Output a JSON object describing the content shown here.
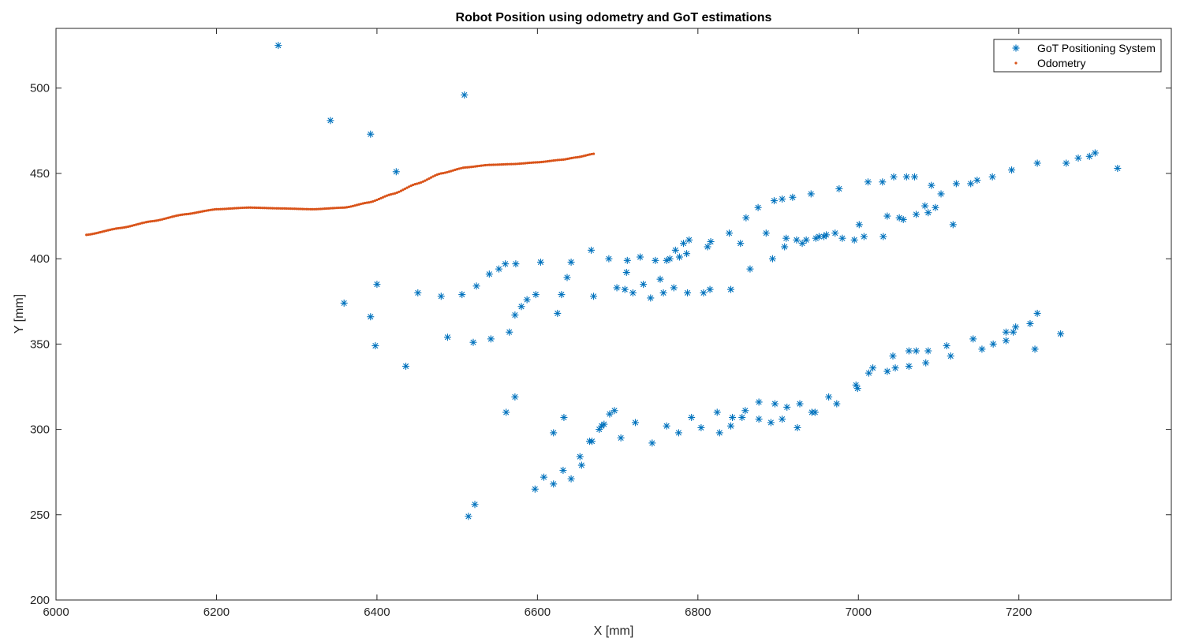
{
  "colors": {
    "got": "#0072BD",
    "odometry": "#D95319",
    "axis": "#262626",
    "legend_border": "#262626"
  },
  "chart_data": {
    "type": "scatter",
    "title": "Robot Position using odometry and GoT estimations",
    "xlabel": "X [mm]",
    "ylabel": "Y [mm]",
    "xlim": [
      6000,
      7390
    ],
    "ylim": [
      200,
      535
    ],
    "x_ticks": [
      6000,
      6200,
      6400,
      6600,
      6800,
      7000,
      7200
    ],
    "y_ticks": [
      200,
      250,
      300,
      350,
      400,
      450,
      500
    ],
    "grid": false,
    "legend_position": "top-right",
    "series": [
      {
        "name": "GoT Positioning System",
        "marker": "asterisk",
        "points": [
          [
            6277,
            525
          ],
          [
            6342,
            481
          ],
          [
            6392,
            473
          ],
          [
            6424,
            451
          ],
          [
            6509,
            496
          ],
          [
            6359,
            374
          ],
          [
            6392,
            366
          ],
          [
            6400,
            385
          ],
          [
            6398,
            349
          ],
          [
            6436,
            337
          ],
          [
            6451,
            380
          ],
          [
            6480,
            378
          ],
          [
            6488,
            354
          ],
          [
            6506,
            379
          ],
          [
            6520,
            351
          ],
          [
            6524,
            384
          ],
          [
            6540,
            391
          ],
          [
            6542,
            353
          ],
          [
            6552,
            394
          ],
          [
            6560,
            397
          ],
          [
            6565,
            357
          ],
          [
            6572,
            367
          ],
          [
            6573,
            397
          ],
          [
            6580,
            372
          ],
          [
            6587,
            376
          ],
          [
            6598,
            379
          ],
          [
            6604,
            398
          ],
          [
            6625,
            368
          ],
          [
            6630,
            379
          ],
          [
            6637,
            389
          ],
          [
            6642,
            398
          ],
          [
            6667,
            405
          ],
          [
            6670,
            378
          ],
          [
            6689,
            400
          ],
          [
            6699,
            383
          ],
          [
            6709,
            382
          ],
          [
            6711,
            392
          ],
          [
            6712,
            399
          ],
          [
            6719,
            380
          ],
          [
            6728,
            401
          ],
          [
            6732,
            385
          ],
          [
            6741,
            377
          ],
          [
            6747,
            399
          ],
          [
            6753,
            388
          ],
          [
            6757,
            380
          ],
          [
            6761,
            399
          ],
          [
            6765,
            400
          ],
          [
            6770,
            383
          ],
          [
            6772,
            405
          ],
          [
            6777,
            401
          ],
          [
            6782,
            409
          ],
          [
            6786,
            403
          ],
          [
            6789,
            411
          ],
          [
            6787,
            380
          ],
          [
            6807,
            380
          ],
          [
            6812,
            407
          ],
          [
            6815,
            382
          ],
          [
            6816,
            410
          ],
          [
            6839,
            415
          ],
          [
            6841,
            382
          ],
          [
            6853,
            409
          ],
          [
            6860,
            424
          ],
          [
            6865,
            394
          ],
          [
            6875,
            430
          ],
          [
            6885,
            415
          ],
          [
            6893,
            400
          ],
          [
            6895,
            434
          ],
          [
            6905,
            435
          ],
          [
            6908,
            407
          ],
          [
            6910,
            412
          ],
          [
            6918,
            436
          ],
          [
            6923,
            411
          ],
          [
            6930,
            409
          ],
          [
            6935,
            411
          ],
          [
            6941,
            438
          ],
          [
            6947,
            412
          ],
          [
            6951,
            413
          ],
          [
            6957,
            413
          ],
          [
            6960,
            414
          ],
          [
            6971,
            415
          ],
          [
            6976,
            441
          ],
          [
            6980,
            412
          ],
          [
            6995,
            411
          ],
          [
            7001,
            420
          ],
          [
            7007,
            413
          ],
          [
            7012,
            445
          ],
          [
            7030,
            445
          ],
          [
            7031,
            413
          ],
          [
            7036,
            425
          ],
          [
            7044,
            448
          ],
          [
            7051,
            424
          ],
          [
            7056,
            423
          ],
          [
            7060,
            448
          ],
          [
            7070,
            448
          ],
          [
            7072,
            426
          ],
          [
            7083,
            431
          ],
          [
            7087,
            427
          ],
          [
            7091,
            443
          ],
          [
            7096,
            430
          ],
          [
            7103,
            438
          ],
          [
            7118,
            420
          ],
          [
            7122,
            444
          ],
          [
            7140,
            444
          ],
          [
            7148,
            446
          ],
          [
            7167,
            448
          ],
          [
            7191,
            452
          ],
          [
            7223,
            456
          ],
          [
            7259,
            456
          ],
          [
            7274,
            459
          ],
          [
            7288,
            460
          ],
          [
            7295,
            462
          ],
          [
            7323,
            453
          ],
          [
            6561,
            310
          ],
          [
            6572,
            319
          ],
          [
            6514,
            249
          ],
          [
            6522,
            256
          ],
          [
            6597,
            265
          ],
          [
            6608,
            272
          ],
          [
            6620,
            268
          ],
          [
            6632,
            276
          ],
          [
            6642,
            271
          ],
          [
            6620,
            298
          ],
          [
            6633,
            307
          ],
          [
            6653,
            284
          ],
          [
            6655,
            279
          ],
          [
            6665,
            293
          ],
          [
            6668,
            293
          ],
          [
            6677,
            300
          ],
          [
            6680,
            302
          ],
          [
            6683,
            303
          ],
          [
            6690,
            309
          ],
          [
            6696,
            311
          ],
          [
            6704,
            295
          ],
          [
            6722,
            304
          ],
          [
            6743,
            292
          ],
          [
            6761,
            302
          ],
          [
            6776,
            298
          ],
          [
            6792,
            307
          ],
          [
            6804,
            301
          ],
          [
            6824,
            310
          ],
          [
            6827,
            298
          ],
          [
            6841,
            302
          ],
          [
            6843,
            307
          ],
          [
            6855,
            307
          ],
          [
            6859,
            311
          ],
          [
            6876,
            316
          ],
          [
            6876,
            306
          ],
          [
            6891,
            304
          ],
          [
            6896,
            315
          ],
          [
            6905,
            306
          ],
          [
            6911,
            313
          ],
          [
            6924,
            301
          ],
          [
            6927,
            315
          ],
          [
            6942,
            310
          ],
          [
            6946,
            310
          ],
          [
            6963,
            319
          ],
          [
            6973,
            315
          ],
          [
            6997,
            326
          ],
          [
            6999,
            324
          ],
          [
            7013,
            333
          ],
          [
            7018,
            336
          ],
          [
            7036,
            334
          ],
          [
            7043,
            343
          ],
          [
            7046,
            336
          ],
          [
            7063,
            337
          ],
          [
            7063,
            346
          ],
          [
            7072,
            346
          ],
          [
            7084,
            339
          ],
          [
            7087,
            346
          ],
          [
            7110,
            349
          ],
          [
            7115,
            343
          ],
          [
            7143,
            353
          ],
          [
            7154,
            347
          ],
          [
            7168,
            350
          ],
          [
            7184,
            352
          ],
          [
            7184,
            357
          ],
          [
            7193,
            357
          ],
          [
            7196,
            360
          ],
          [
            7214,
            362
          ],
          [
            7220,
            347
          ],
          [
            7223,
            368
          ],
          [
            7252,
            356
          ]
        ]
      },
      {
        "name": "Odometry",
        "marker": "dot",
        "curve": [
          [
            6038,
            414
          ],
          [
            6080,
            418
          ],
          [
            6120,
            422
          ],
          [
            6160,
            426
          ],
          [
            6200,
            429
          ],
          [
            6240,
            430
          ],
          [
            6280,
            429.5
          ],
          [
            6320,
            429
          ],
          [
            6360,
            430
          ],
          [
            6390,
            433
          ],
          [
            6420,
            438
          ],
          [
            6450,
            444
          ],
          [
            6480,
            450
          ],
          [
            6510,
            453.5
          ],
          [
            6540,
            455
          ],
          [
            6570,
            455.5
          ],
          [
            6600,
            456.5
          ],
          [
            6630,
            458
          ],
          [
            6650,
            459.5
          ],
          [
            6670,
            461.5
          ]
        ]
      }
    ]
  }
}
